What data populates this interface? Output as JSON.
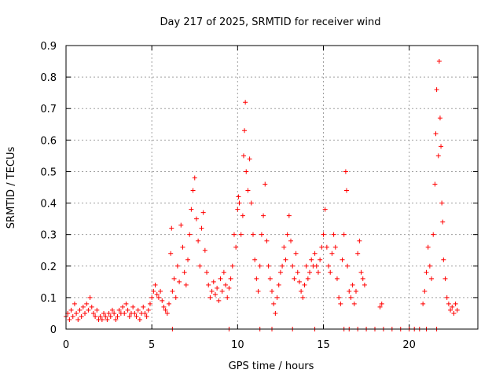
{
  "chart_data": {
    "type": "scatter",
    "title": "Day 217 of 2025, SRMTID for receiver wind",
    "xlabel": "GPS time / hours",
    "ylabel": "SRMTID / TECUs",
    "xlim": [
      0,
      24
    ],
    "ylim": [
      0,
      0.9
    ],
    "xticks": [
      0,
      5,
      10,
      15,
      20
    ],
    "yticks": [
      0,
      0.1,
      0.2,
      0.3,
      0.4,
      0.5,
      0.6,
      0.7,
      0.8,
      0.9
    ],
    "grid": true,
    "marker": "+",
    "color": "#ff0000",
    "series": [
      {
        "name": "SRMTID",
        "points": [
          [
            0.0,
            0.04
          ],
          [
            0.1,
            0.05
          ],
          [
            0.2,
            0.03
          ],
          [
            0.3,
            0.06
          ],
          [
            0.4,
            0.04
          ],
          [
            0.5,
            0.08
          ],
          [
            0.6,
            0.05
          ],
          [
            0.7,
            0.03
          ],
          [
            0.8,
            0.06
          ],
          [
            0.9,
            0.04
          ],
          [
            1.0,
            0.07
          ],
          [
            1.1,
            0.05
          ],
          [
            1.2,
            0.08
          ],
          [
            1.3,
            0.06
          ],
          [
            1.4,
            0.1
          ],
          [
            1.5,
            0.07
          ],
          [
            1.6,
            0.05
          ],
          [
            1.7,
            0.04
          ],
          [
            1.8,
            0.06
          ],
          [
            1.9,
            0.03
          ],
          [
            2.0,
            0.04
          ],
          [
            2.1,
            0.03
          ],
          [
            2.2,
            0.05
          ],
          [
            2.3,
            0.04
          ],
          [
            2.4,
            0.03
          ],
          [
            2.5,
            0.05
          ],
          [
            2.6,
            0.04
          ],
          [
            2.7,
            0.06
          ],
          [
            2.8,
            0.05
          ],
          [
            2.9,
            0.03
          ],
          [
            3.0,
            0.04
          ],
          [
            3.1,
            0.06
          ],
          [
            3.2,
            0.05
          ],
          [
            3.3,
            0.07
          ],
          [
            3.4,
            0.05
          ],
          [
            3.5,
            0.08
          ],
          [
            3.6,
            0.06
          ],
          [
            3.7,
            0.04
          ],
          [
            3.8,
            0.05
          ],
          [
            3.9,
            0.07
          ],
          [
            4.0,
            0.05
          ],
          [
            4.1,
            0.04
          ],
          [
            4.2,
            0.06
          ],
          [
            4.3,
            0.03
          ],
          [
            4.4,
            0.05
          ],
          [
            4.5,
            0.07
          ],
          [
            4.6,
            0.05
          ],
          [
            4.7,
            0.04
          ],
          [
            4.8,
            0.06
          ],
          [
            4.9,
            0.08
          ],
          [
            5.0,
            0.1
          ],
          [
            5.1,
            0.12
          ],
          [
            5.2,
            0.14
          ],
          [
            5.3,
            0.11
          ],
          [
            5.4,
            0.1
          ],
          [
            5.5,
            0.12
          ],
          [
            5.6,
            0.09
          ],
          [
            5.7,
            0.07
          ],
          [
            5.8,
            0.06
          ],
          [
            5.9,
            0.05
          ],
          [
            6.0,
            0.08
          ],
          [
            6.1,
            0.24
          ],
          [
            6.15,
            0.32
          ],
          [
            6.2,
            0.12
          ],
          [
            6.3,
            0.16
          ],
          [
            6.4,
            0.1
          ],
          [
            6.5,
            0.2
          ],
          [
            6.6,
            0.15
          ],
          [
            6.7,
            0.33
          ],
          [
            6.8,
            0.26
          ],
          [
            6.9,
            0.18
          ],
          [
            7.0,
            0.14
          ],
          [
            7.1,
            0.22
          ],
          [
            7.2,
            0.3
          ],
          [
            7.3,
            0.38
          ],
          [
            7.4,
            0.44
          ],
          [
            7.5,
            0.48
          ],
          [
            7.6,
            0.35
          ],
          [
            7.7,
            0.28
          ],
          [
            7.8,
            0.2
          ],
          [
            7.9,
            0.32
          ],
          [
            8.0,
            0.37
          ],
          [
            8.1,
            0.25
          ],
          [
            8.2,
            0.18
          ],
          [
            8.3,
            0.14
          ],
          [
            8.4,
            0.1
          ],
          [
            8.5,
            0.12
          ],
          [
            8.6,
            0.15
          ],
          [
            8.7,
            0.11
          ],
          [
            8.8,
            0.13
          ],
          [
            8.9,
            0.09
          ],
          [
            9.0,
            0.16
          ],
          [
            9.1,
            0.12
          ],
          [
            9.2,
            0.18
          ],
          [
            9.3,
            0.14
          ],
          [
            9.4,
            0.1
          ],
          [
            9.5,
            0.13
          ],
          [
            9.6,
            0.16
          ],
          [
            9.7,
            0.2
          ],
          [
            9.8,
            0.3
          ],
          [
            9.9,
            0.26
          ],
          [
            10.0,
            0.38
          ],
          [
            10.05,
            0.42
          ],
          [
            10.1,
            0.4
          ],
          [
            10.2,
            0.3
          ],
          [
            10.3,
            0.36
          ],
          [
            10.35,
            0.55
          ],
          [
            10.4,
            0.63
          ],
          [
            10.45,
            0.72
          ],
          [
            10.5,
            0.5
          ],
          [
            10.6,
            0.44
          ],
          [
            10.7,
            0.54
          ],
          [
            10.8,
            0.4
          ],
          [
            10.9,
            0.3
          ],
          [
            11.0,
            0.22
          ],
          [
            11.1,
            0.16
          ],
          [
            11.2,
            0.12
          ],
          [
            11.3,
            0.2
          ],
          [
            11.4,
            0.3
          ],
          [
            11.5,
            0.36
          ],
          [
            11.6,
            0.46
          ],
          [
            11.7,
            0.28
          ],
          [
            11.8,
            0.2
          ],
          [
            11.9,
            0.16
          ],
          [
            12.0,
            0.12
          ],
          [
            12.1,
            0.08
          ],
          [
            12.2,
            0.05
          ],
          [
            12.3,
            0.1
          ],
          [
            12.4,
            0.14
          ],
          [
            12.5,
            0.18
          ],
          [
            12.6,
            0.2
          ],
          [
            12.7,
            0.26
          ],
          [
            12.8,
            0.22
          ],
          [
            12.9,
            0.3
          ],
          [
            13.0,
            0.36
          ],
          [
            13.1,
            0.28
          ],
          [
            13.2,
            0.2
          ],
          [
            13.3,
            0.16
          ],
          [
            13.4,
            0.24
          ],
          [
            13.5,
            0.18
          ],
          [
            13.6,
            0.15
          ],
          [
            13.7,
            0.12
          ],
          [
            13.8,
            0.1
          ],
          [
            13.9,
            0.14
          ],
          [
            14.0,
            0.2
          ],
          [
            14.1,
            0.16
          ],
          [
            14.2,
            0.18
          ],
          [
            14.3,
            0.22
          ],
          [
            14.4,
            0.2
          ],
          [
            14.5,
            0.24
          ],
          [
            14.6,
            0.2
          ],
          [
            14.7,
            0.18
          ],
          [
            14.8,
            0.22
          ],
          [
            14.9,
            0.26
          ],
          [
            15.0,
            0.3
          ],
          [
            15.1,
            0.38
          ],
          [
            15.2,
            0.26
          ],
          [
            15.3,
            0.2
          ],
          [
            15.4,
            0.18
          ],
          [
            15.5,
            0.24
          ],
          [
            15.6,
            0.3
          ],
          [
            15.7,
            0.26
          ],
          [
            15.8,
            0.16
          ],
          [
            15.9,
            0.1
          ],
          [
            16.0,
            0.08
          ],
          [
            16.1,
            0.22
          ],
          [
            16.2,
            0.3
          ],
          [
            16.3,
            0.5
          ],
          [
            16.35,
            0.44
          ],
          [
            16.4,
            0.2
          ],
          [
            16.5,
            0.12
          ],
          [
            16.6,
            0.1
          ],
          [
            16.7,
            0.14
          ],
          [
            16.8,
            0.08
          ],
          [
            16.9,
            0.12
          ],
          [
            17.0,
            0.24
          ],
          [
            17.1,
            0.28
          ],
          [
            17.2,
            0.18
          ],
          [
            17.3,
            0.16
          ],
          [
            17.4,
            0.14
          ],
          [
            18.3,
            0.07
          ],
          [
            18.4,
            0.08
          ],
          [
            20.8,
            0.08
          ],
          [
            20.9,
            0.12
          ],
          [
            21.0,
            0.18
          ],
          [
            21.1,
            0.26
          ],
          [
            21.2,
            0.2
          ],
          [
            21.3,
            0.16
          ],
          [
            21.4,
            0.3
          ],
          [
            21.5,
            0.46
          ],
          [
            21.55,
            0.62
          ],
          [
            21.6,
            0.76
          ],
          [
            21.7,
            0.55
          ],
          [
            21.75,
            0.85
          ],
          [
            21.8,
            0.67
          ],
          [
            21.85,
            0.58
          ],
          [
            21.9,
            0.4
          ],
          [
            21.95,
            0.34
          ],
          [
            22.0,
            0.22
          ],
          [
            22.1,
            0.16
          ],
          [
            22.2,
            0.1
          ],
          [
            22.3,
            0.08
          ],
          [
            22.4,
            0.06
          ],
          [
            22.5,
            0.07
          ],
          [
            22.6,
            0.05
          ],
          [
            22.7,
            0.08
          ],
          [
            22.8,
            0.06
          ],
          [
            6.2,
            0.0
          ],
          [
            9.5,
            0.0
          ],
          [
            11.3,
            0.0
          ],
          [
            12.0,
            0.0
          ],
          [
            13.2,
            0.0
          ],
          [
            14.5,
            0.0
          ],
          [
            16.2,
            0.0
          ],
          [
            16.5,
            0.0
          ],
          [
            17.0,
            0.0
          ],
          [
            17.5,
            0.0
          ],
          [
            18.0,
            0.0
          ],
          [
            18.5,
            0.0
          ],
          [
            19.0,
            0.0
          ],
          [
            19.5,
            0.0
          ],
          [
            20.0,
            0.0
          ],
          [
            20.3,
            0.0
          ],
          [
            20.6,
            0.0
          ],
          [
            21.0,
            0.0
          ],
          [
            21.6,
            0.0
          ]
        ]
      }
    ]
  }
}
